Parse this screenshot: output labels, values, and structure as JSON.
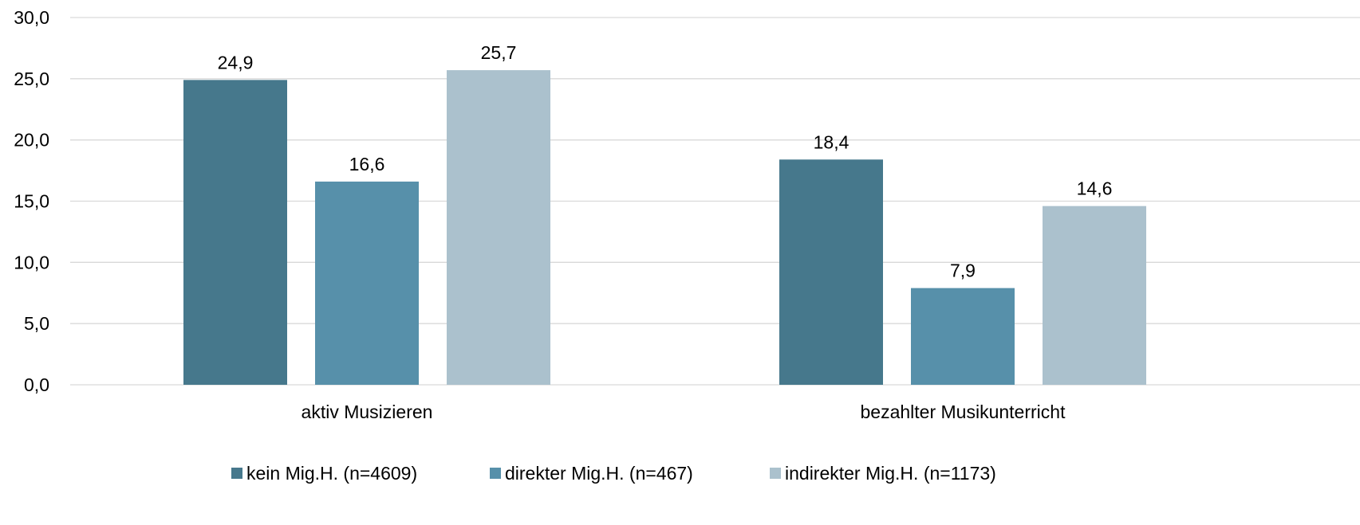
{
  "chart_data": {
    "type": "bar",
    "categories": [
      "aktiv Musizieren",
      "bezahlter Musikunterricht"
    ],
    "series": [
      {
        "name": "kein Mig.H. (n=4609)",
        "values": [
          24.9,
          18.4
        ],
        "color": "#46788c"
      },
      {
        "name": "direkter Mig.H. (n=467)",
        "values": [
          16.6,
          7.9
        ],
        "color": "#5790aa"
      },
      {
        "name": "indirekter Mig.H. (n=1173)",
        "values": [
          25.7,
          14.6
        ],
        "color": "#abc1cd"
      }
    ],
    "data_labels": [
      [
        "24,9",
        "18,4"
      ],
      [
        "16,6",
        "7,9"
      ],
      [
        "25,7",
        "14,6"
      ]
    ],
    "yticks": [
      0,
      5,
      10,
      15,
      20,
      25,
      30
    ],
    "ytick_labels": [
      "0,0",
      "5,0",
      "10,0",
      "15,0",
      "20,0",
      "25,0",
      "30,0"
    ],
    "ylim": [
      0,
      30
    ],
    "title": "",
    "xlabel": "",
    "ylabel": "",
    "grid": true,
    "gridline_color": "#d9d9d9",
    "legend_position": "bottom"
  }
}
